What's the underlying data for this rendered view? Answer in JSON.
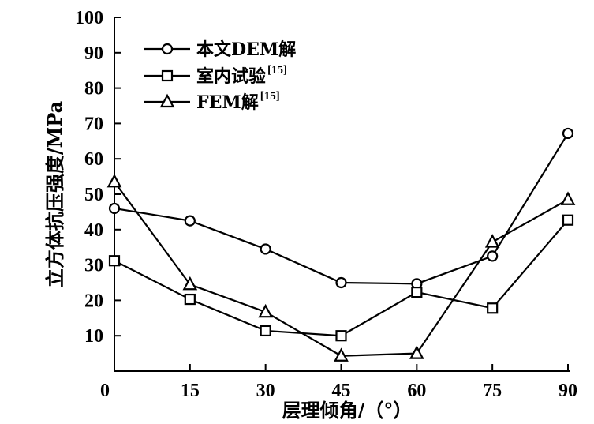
{
  "chart_data": {
    "type": "line",
    "xlabel": "层理倾角/（°）",
    "ylabel": "立方体抗压强度/MPa",
    "xlim": [
      0,
      90
    ],
    "ylim": [
      0,
      100
    ],
    "x_ticks": [
      "0",
      "15",
      "30",
      "45",
      "60",
      "75",
      "90"
    ],
    "y_ticks": [
      "10",
      "20",
      "30",
      "40",
      "50",
      "60",
      "70",
      "80",
      "90",
      "100"
    ],
    "grid": false,
    "legend_position": "top-left",
    "series": [
      {
        "name": "本文DEM解",
        "name_sup": "",
        "marker": "circle",
        "x": [
          0,
          15,
          30,
          45,
          60,
          75,
          90
        ],
        "values": [
          46.0,
          42.5,
          34.5,
          25.0,
          24.7,
          32.5,
          67.2
        ]
      },
      {
        "name": "室内试验",
        "name_sup": "[15]",
        "marker": "square",
        "x": [
          0,
          15,
          30,
          45,
          60,
          75,
          90
        ],
        "values": [
          31.2,
          20.3,
          11.4,
          10.0,
          22.3,
          17.8,
          42.7
        ]
      },
      {
        "name": "FEM解",
        "name_sup": "[15]",
        "marker": "triangle",
        "x": [
          0,
          15,
          30,
          45,
          60,
          75,
          90
        ],
        "values": [
          53.5,
          24.5,
          16.7,
          4.3,
          5.0,
          36.5,
          48.5
        ]
      }
    ]
  }
}
